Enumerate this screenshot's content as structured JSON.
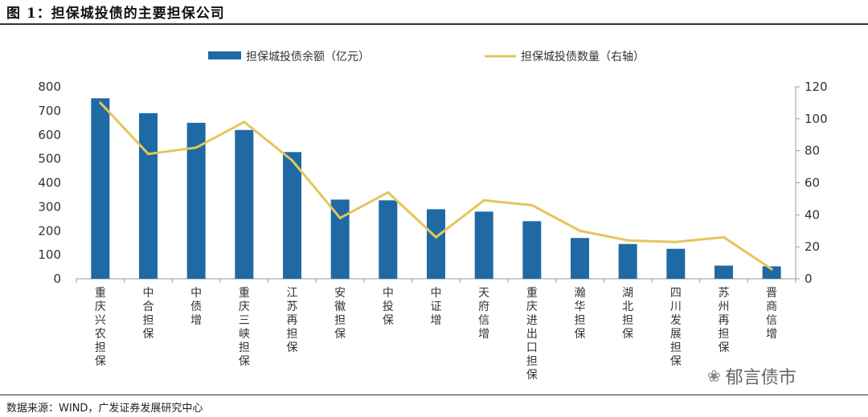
{
  "figure_title": "图 1：担保城投债的主要担保公司",
  "source_note": "数据来源：WIND，广发证券发展研究中心",
  "watermark": "郁言债市",
  "colors": {
    "bar": "#1f6aa5",
    "line": "#e3c65a",
    "axis": "#999999",
    "text": "#333333"
  },
  "chart_data": {
    "type": "bar",
    "categories": [
      "重庆兴农担保",
      "中合担保",
      "中债增",
      "重庆三峡担保",
      "江苏再担保",
      "安徽担保",
      "中投保",
      "中证增",
      "天府信增",
      "重庆进出口担保",
      "瀚华担保",
      "湖北担保",
      "四川发展担保",
      "苏州再担保",
      "晋商信增"
    ],
    "series": [
      {
        "name": "担保城投债余额（亿元）",
        "type": "bar",
        "axis": "left",
        "values": [
          752,
          690,
          650,
          620,
          528,
          330,
          327,
          290,
          280,
          240,
          170,
          145,
          125,
          55,
          52
        ]
      },
      {
        "name": "担保城投债数量（右轴）",
        "type": "line",
        "axis": "right",
        "values": [
          110,
          78,
          82,
          98,
          74,
          38,
          54,
          26,
          49,
          46,
          30,
          24,
          23,
          26,
          6
        ]
      }
    ],
    "y_left": {
      "min": 0,
      "max": 800,
      "ticks": [
        "0",
        "100",
        "200",
        "300",
        "400",
        "500",
        "600",
        "700",
        "800"
      ]
    },
    "y_right": {
      "min": 0,
      "max": 120,
      "ticks": [
        "0",
        "20",
        "40",
        "60",
        "80",
        "100",
        "120"
      ]
    },
    "legend_position": "top",
    "grid": false
  }
}
